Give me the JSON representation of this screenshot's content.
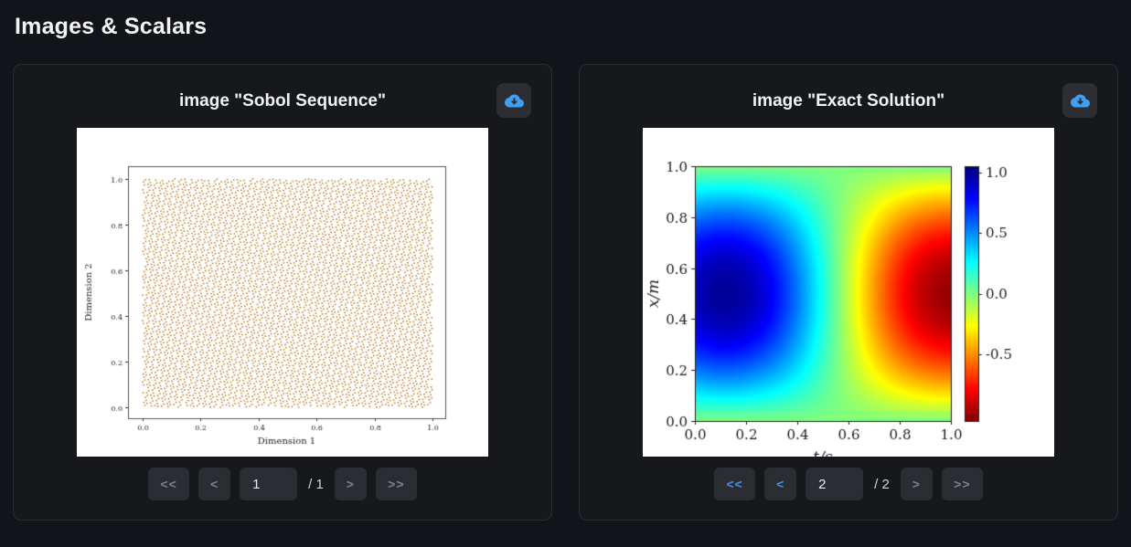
{
  "page": {
    "title": "Images & Scalars"
  },
  "colors": {
    "accent_blue": "#3f94e8",
    "download_icon_blue": "#3f9ff0",
    "panel_background": "#17181c",
    "page_background": "#131419",
    "scatter_dot": "#b8761d"
  },
  "panels": [
    {
      "title": "image \"Sobol Sequence\"",
      "download_icon": "cloud-download-icon",
      "pager": {
        "first_label": "<<",
        "prev_label": "<",
        "page": "1",
        "total_label": "/ 1",
        "next_label": ">",
        "last_label": ">>",
        "first_enabled": false,
        "prev_enabled": false,
        "next_enabled": false,
        "last_enabled": false
      }
    },
    {
      "title": "image \"Exact Solution\"",
      "download_icon": "cloud-download-icon",
      "pager": {
        "first_label": "<<",
        "prev_label": "<",
        "page": "2",
        "total_label": "/ 2",
        "next_label": ">",
        "last_label": ">>",
        "first_enabled": true,
        "prev_enabled": true,
        "next_enabled": false,
        "last_enabled": false
      }
    }
  ],
  "chart_data": [
    {
      "type": "scatter",
      "title": "",
      "xlabel": "Dimension 1",
      "ylabel": "Dimension 2",
      "xlim": [
        0.0,
        1.0
      ],
      "ylim": [
        0.0,
        1.0
      ],
      "xticks": [
        0.0,
        0.2,
        0.4,
        0.6,
        0.8,
        1.0
      ],
      "yticks": [
        0.0,
        0.2,
        0.4,
        0.6,
        0.8,
        1.0
      ],
      "n_points": 5200,
      "marker_color": "#b8761d",
      "marker_size_px": 1.5,
      "description": "2-D Sobol quasi-random sequence: ~5000 tiny orange square markers uniformly filling the unit square with characteristic diagonal streak texture",
      "grid": false,
      "legend": null
    },
    {
      "type": "heatmap",
      "title": "",
      "xlabel": "t/s",
      "ylabel": "x/m",
      "xlim": [
        0.0,
        1.0
      ],
      "ylim": [
        0.0,
        1.0
      ],
      "xticks": [
        0.0,
        0.2,
        0.4,
        0.6,
        0.8,
        1.0
      ],
      "yticks": [
        0.0,
        0.2,
        0.4,
        0.6,
        0.8,
        1.0
      ],
      "colormap": "jet reversed (+1 = dark blue, 0 = green, -1 = dark red)",
      "value_range": [
        -1.05,
        1.05
      ],
      "colorbar_ticks": [
        1.0,
        0.5,
        0.0,
        -0.5
      ],
      "field": {
        "formula": "u(x,t) = sin(pi*x) * cos(pi*(1.12*t - 0.13))",
        "phase_scale": 1.12,
        "phase_offset": -0.13,
        "description": "Standing-wave exact solution: dark blue maximum near (t=0.15, x=0.5), dark red minimum near (t=0.95, x=0.5), green zero band near t=0.56 and along x=0 and x=1 edges"
      },
      "grid": false,
      "legend": null
    }
  ]
}
